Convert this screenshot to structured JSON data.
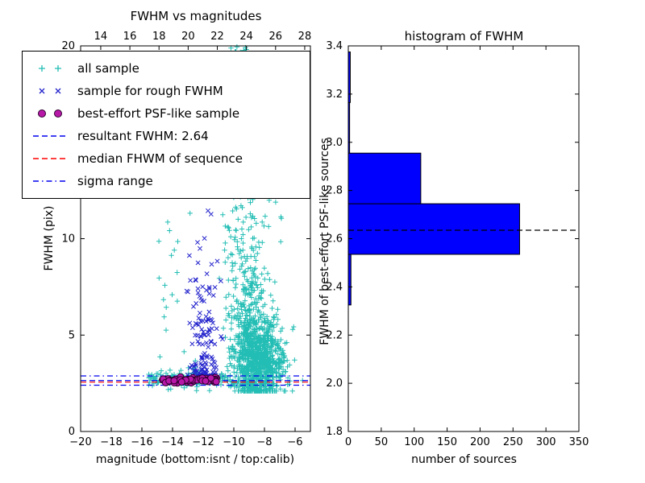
{
  "figure": {
    "background": "#ffffff"
  },
  "chart_data": [
    {
      "type": "scatter",
      "title": "FWHM vs magnitudes",
      "xlabel": "magnitude (bottom:isnt / top:calib)",
      "ylabel": "FWHM (pix)",
      "xlim": [
        -20,
        -5
      ],
      "xlim_top": [
        12.62,
        28.39
      ],
      "ylim": [
        0,
        20
      ],
      "xticks_bottom": [
        -20,
        -18,
        -16,
        -14,
        -12,
        -10,
        -8,
        -6
      ],
      "xticks_top": [
        14,
        16,
        18,
        20,
        22,
        24,
        26,
        28
      ],
      "yticks": [
        0,
        5,
        10,
        15,
        20
      ],
      "series": [
        {
          "name": "all sample",
          "marker": "plus",
          "color": "#22bdb4",
          "clusters": [
            {
              "n": 900,
              "x": [
                "n",
                -8.4,
                0.85
              ],
              "y": [
                "n",
                3.6,
                1.1
              ],
              "clip_y": [
                2.1,
                9
              ]
            },
            {
              "n": 260,
              "x": [
                "n",
                -8.9,
                0.6
              ],
              "y": [
                "n",
                6.0,
                2.3
              ],
              "clip_y": [
                2.5,
                14
              ]
            },
            {
              "n": 130,
              "x": [
                "n",
                -9.9,
                0.5
              ],
              "y": [
                "u",
                3,
                20
              ]
            },
            {
              "n": 140,
              "x": [
                "u",
                -15.6,
                -10.2
              ],
              "y": [
                "n",
                2.75,
                0.22
              ]
            },
            {
              "n": 45,
              "x": [
                "n",
                -8.6,
                1.1
              ],
              "y": [
                "u",
                9,
                20
              ]
            },
            {
              "n": 20,
              "x": [
                "u",
                -15.0,
                -12.5
              ],
              "y": [
                "u",
                3,
                12
              ]
            }
          ]
        },
        {
          "name": "sample for rough FWHM",
          "marker": "x",
          "color": "#2222cc",
          "clusters": [
            {
              "n": 110,
              "x": [
                "n",
                -11.9,
                0.45
              ],
              "y": [
                "n",
                5.2,
                2.2
              ],
              "clip_y": [
                2.9,
                12.3
              ]
            },
            {
              "n": 40,
              "x": [
                "u",
                -12.6,
                -11.0
              ],
              "y": [
                "n",
                3.1,
                0.35
              ],
              "clip_y": [
                2.7,
                4.5
              ]
            }
          ]
        },
        {
          "name": "best-effort PSF-like sample",
          "marker": "circle",
          "color": "#b818a8",
          "edge": "#2d002d",
          "clusters": [
            {
              "n": 70,
              "x": [
                "u",
                -14.7,
                -11.1
              ],
              "y": [
                "n",
                2.66,
                0.07
              ]
            }
          ]
        }
      ],
      "lines": [
        {
          "name": "resultant-fwhm",
          "value": 2.64,
          "color": "#0000ee",
          "style": "dashed"
        },
        {
          "name": "median-fwhm",
          "value": 2.56,
          "color": "#ff0000",
          "style": "dashed"
        },
        {
          "name": "sigma-range-upper",
          "value": 2.88,
          "color": "#0000ee",
          "style": "dashdot"
        },
        {
          "name": "sigma-range-lower",
          "value": 2.4,
          "color": "#0000ee",
          "style": "dashdot"
        }
      ],
      "legend": [
        {
          "type": "points",
          "marker": "plus",
          "color": "#22bdb4",
          "label": "all sample"
        },
        {
          "type": "points",
          "marker": "x",
          "color": "#2222cc",
          "label": "sample for rough FWHM"
        },
        {
          "type": "points",
          "marker": "circle",
          "color": "#b818a8",
          "edge": "#2d002d",
          "label": "best-effort PSF-like sample"
        },
        {
          "type": "line",
          "style": "dashed",
          "color": "#0000ee",
          "label": "resultant FWHM: 2.64"
        },
        {
          "type": "line",
          "style": "dashed",
          "color": "#ff0000",
          "label": "median FHWM of sequence"
        },
        {
          "type": "line",
          "style": "dashdot",
          "color": "#0000ee",
          "label": "sigma range"
        }
      ],
      "resultant_fwhm": 2.64
    },
    {
      "type": "histogram",
      "orientation": "horizontal",
      "title": "histogram of FWHM",
      "xlabel": "number of sources",
      "ylabel": "FWHM of best-effort PSF-like sources",
      "xlim": [
        0,
        350
      ],
      "ylim": [
        1.8,
        3.4
      ],
      "xticks": [
        0,
        50,
        100,
        150,
        200,
        250,
        300,
        350
      ],
      "yticks": [
        1.8,
        2.0,
        2.2,
        2.4,
        2.6,
        2.8,
        3.0,
        3.2,
        3.4
      ],
      "bin_edges": [
        2.325,
        2.535,
        2.745,
        2.955,
        3.165,
        3.375
      ],
      "counts": [
        4,
        260,
        110,
        2,
        3
      ],
      "bar_color": "#0000ff",
      "bar_edge": "#000000",
      "dashed_line_value": 2.635,
      "dashed_line_color": "#000000"
    }
  ]
}
